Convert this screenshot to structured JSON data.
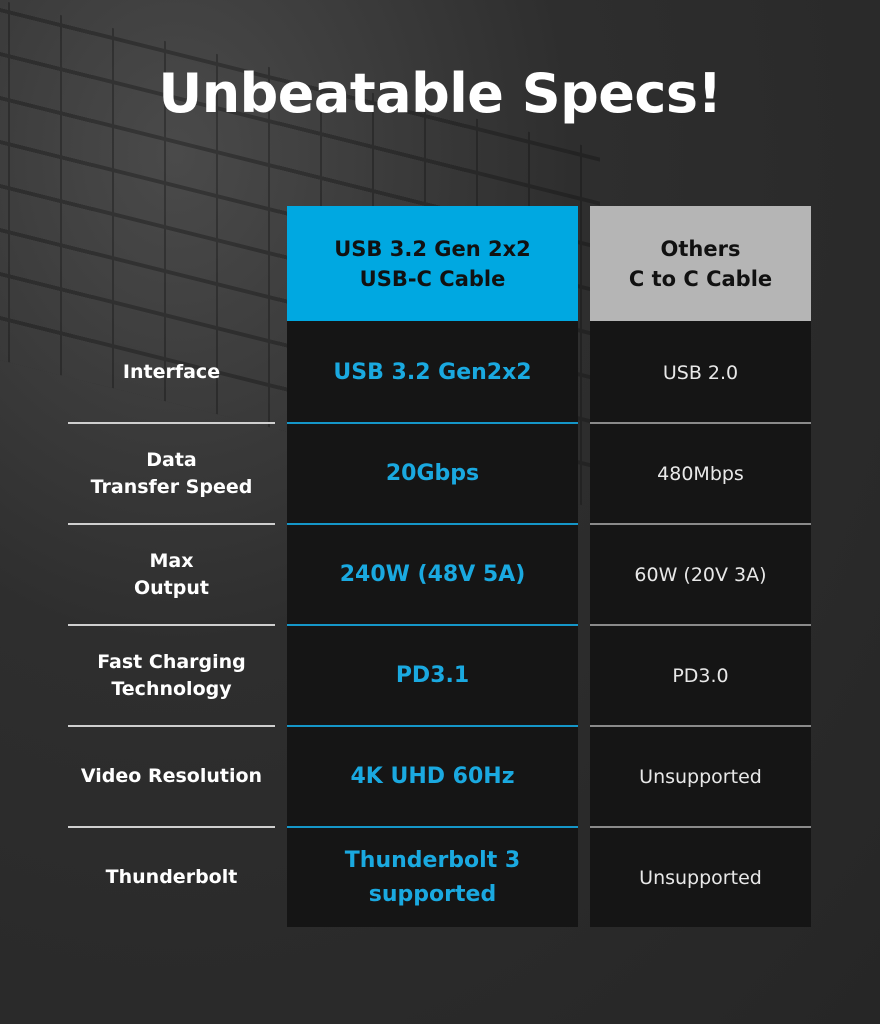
{
  "title": "Unbeatable Specs!",
  "colors": {
    "highlight": "#00a8e1",
    "others_header": "#b5b5b5",
    "cell_bg": "#151515"
  },
  "columns": {
    "ours": "USB 3.2 Gen 2x2\nUSB-C Cable",
    "others": "Others\nC to C  Cable"
  },
  "rows": [
    {
      "label": "Interface",
      "ours": "USB 3.2 Gen2x2",
      "others": "USB 2.0"
    },
    {
      "label": "Data\nTransfer Speed",
      "ours": "20Gbps",
      "others": "480Mbps"
    },
    {
      "label": "Max\nOutput",
      "ours": "240W (48V 5A)",
      "others": "60W (20V 3A)"
    },
    {
      "label": "Fast Charging\nTechnology",
      "ours": "PD3.1",
      "others": "PD3.0"
    },
    {
      "label": "Video Resolution",
      "ours": "4K UHD 60Hz",
      "others": "Unsupported"
    },
    {
      "label": "Thunderbolt",
      "ours": "Thunderbolt 3\nsupported",
      "others": "Unsupported"
    }
  ]
}
